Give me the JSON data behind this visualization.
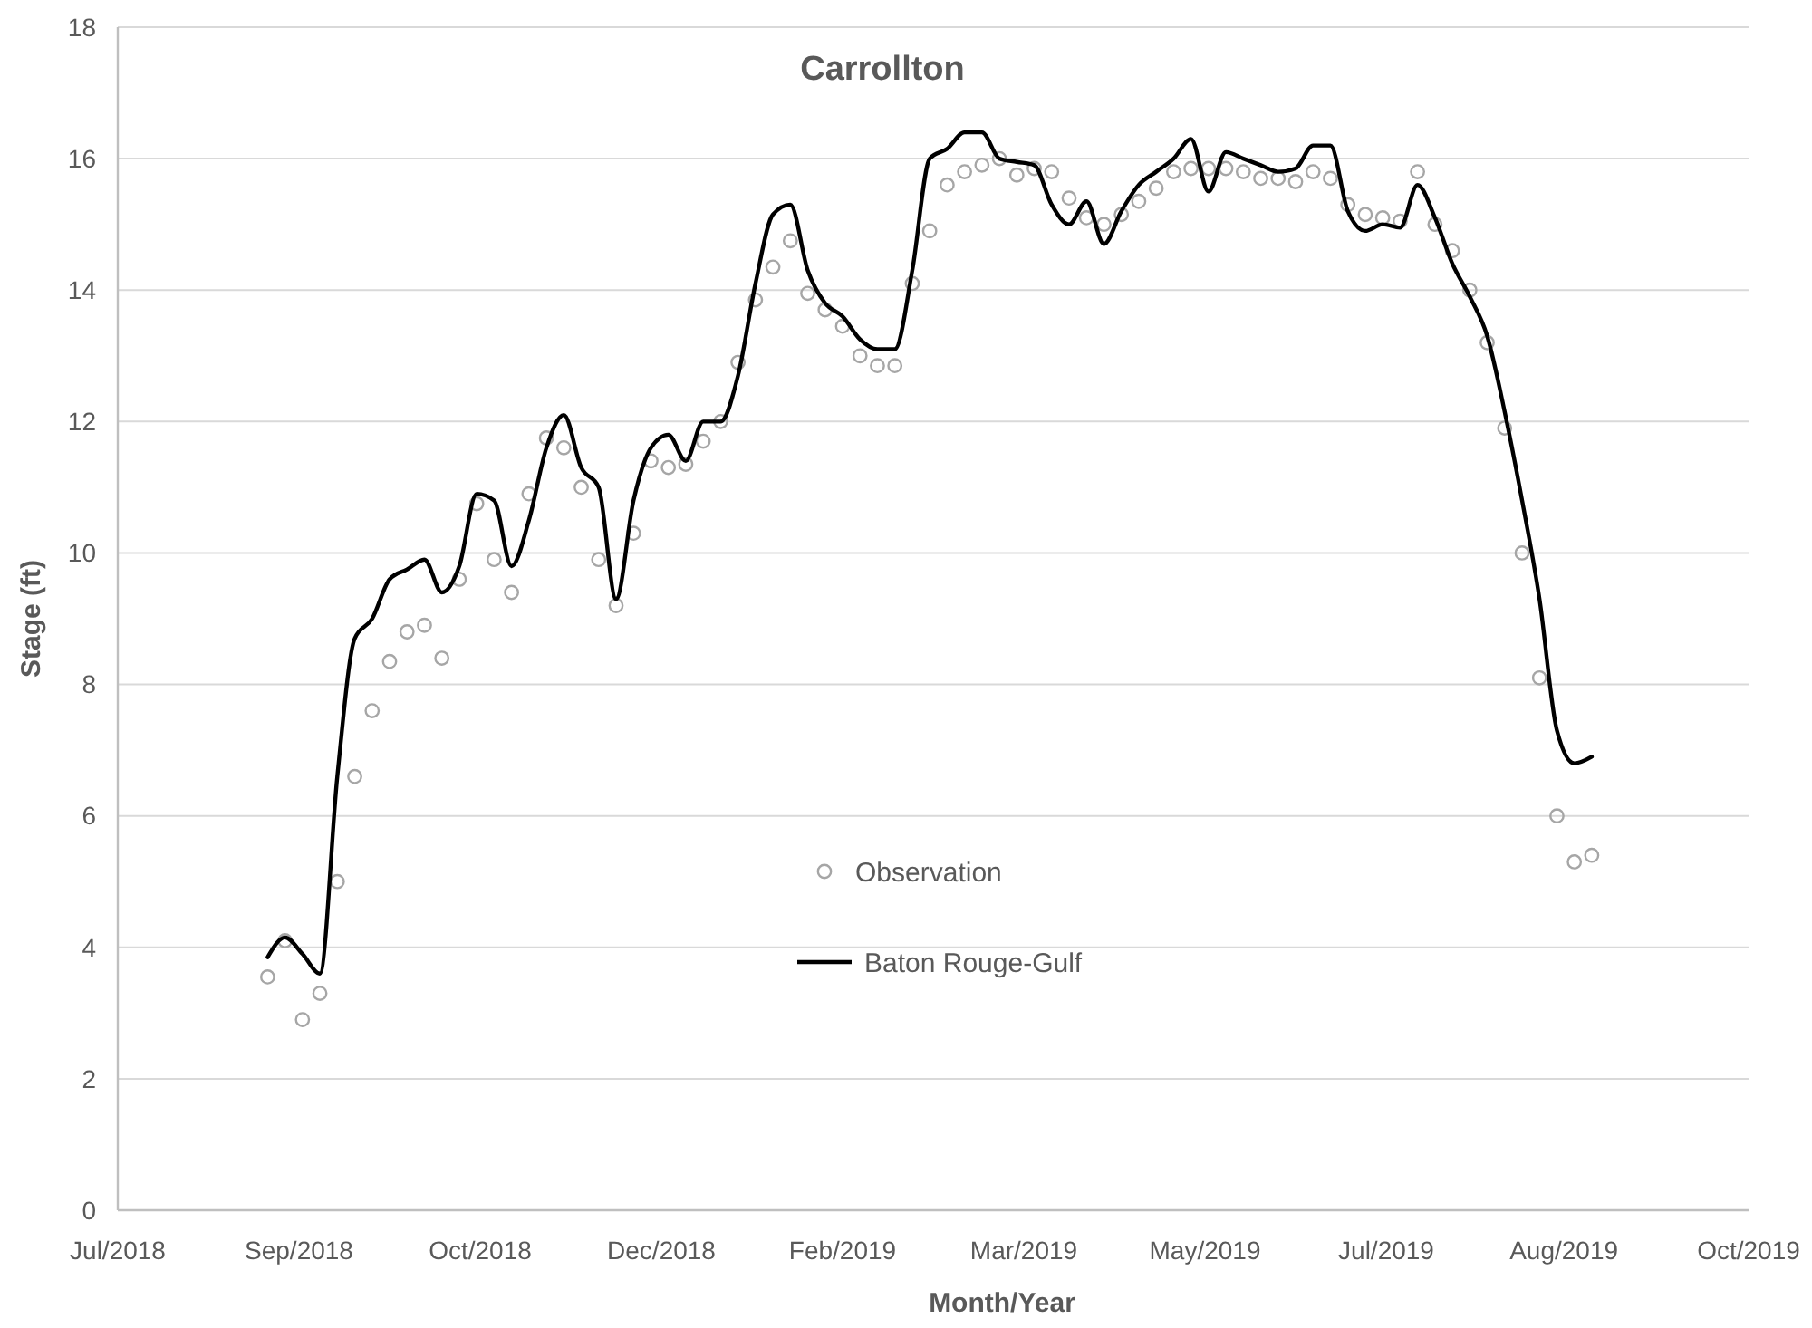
{
  "chart_data": {
    "type": "line",
    "title": "Carrollton",
    "xlabel": "Month/Year",
    "ylabel": "Stage (ft)",
    "x": [
      "2018-08-24",
      "2018-08-29",
      "2018-09-03",
      "2018-09-08",
      "2018-09-13",
      "2018-09-18",
      "2018-09-23",
      "2018-09-28",
      "2018-10-03",
      "2018-10-08",
      "2018-10-13",
      "2018-10-18",
      "2018-10-23",
      "2018-10-28",
      "2018-11-02",
      "2018-11-07",
      "2018-11-12",
      "2018-11-17",
      "2018-11-22",
      "2018-11-27",
      "2018-12-02",
      "2018-12-07",
      "2018-12-12",
      "2018-12-17",
      "2018-12-22",
      "2018-12-27",
      "2019-01-01",
      "2019-01-06",
      "2019-01-11",
      "2019-01-16",
      "2019-01-21",
      "2019-01-26",
      "2019-01-31",
      "2019-02-05",
      "2019-02-10",
      "2019-02-15",
      "2019-02-20",
      "2019-02-25",
      "2019-03-02",
      "2019-03-07",
      "2019-03-12",
      "2019-03-17",
      "2019-03-22",
      "2019-03-27",
      "2019-04-01",
      "2019-04-06",
      "2019-04-11",
      "2019-04-16",
      "2019-04-21",
      "2019-04-26",
      "2019-05-01",
      "2019-05-06",
      "2019-05-11",
      "2019-05-16",
      "2019-05-21",
      "2019-05-26",
      "2019-05-31",
      "2019-06-05",
      "2019-06-10",
      "2019-06-15",
      "2019-06-20",
      "2019-06-25",
      "2019-06-30",
      "2019-07-05",
      "2019-07-10",
      "2019-07-15",
      "2019-07-20",
      "2019-07-25",
      "2019-07-30",
      "2019-08-04",
      "2019-08-09",
      "2019-08-14",
      "2019-08-19",
      "2019-08-24",
      "2019-08-29",
      "2019-09-03",
      "2019-09-08"
    ],
    "series": [
      {
        "name": "Observation",
        "type": "scatter",
        "marker": "circle",
        "color": "#a6a6a6",
        "values": [
          3.55,
          4.1,
          2.9,
          3.3,
          5.0,
          6.6,
          7.6,
          8.35,
          8.8,
          8.9,
          8.4,
          9.6,
          10.75,
          9.9,
          9.4,
          10.9,
          11.75,
          11.6,
          11.0,
          9.9,
          9.2,
          10.3,
          11.4,
          11.3,
          11.35,
          11.7,
          12.0,
          12.9,
          13.85,
          14.35,
          14.75,
          13.95,
          13.7,
          13.45,
          13.0,
          12.85,
          12.85,
          14.1,
          14.9,
          15.6,
          15.8,
          15.9,
          16.0,
          15.75,
          15.85,
          15.8,
          15.4,
          15.1,
          15.0,
          15.15,
          15.35,
          15.55,
          15.8,
          15.85,
          15.85,
          15.85,
          15.8,
          15.7,
          15.7,
          15.65,
          15.8,
          15.7,
          15.3,
          15.15,
          15.1,
          15.05,
          15.8,
          15.0,
          14.6,
          14.0,
          13.2,
          11.9,
          10.0,
          8.1,
          6.0,
          5.3,
          5.4
        ]
      },
      {
        "name": "Baton Rouge-Gulf",
        "color": "#000000",
        "values": [
          3.85,
          4.15,
          3.9,
          3.6,
          6.6,
          8.7,
          9.0,
          9.6,
          9.75,
          9.9,
          9.4,
          9.8,
          10.9,
          10.8,
          9.8,
          10.5,
          11.6,
          12.1,
          11.3,
          11.0,
          9.3,
          10.8,
          11.6,
          11.8,
          11.4,
          12.0,
          12.0,
          12.7,
          14.1,
          15.15,
          15.3,
          14.3,
          13.8,
          13.6,
          13.25,
          13.1,
          13.1,
          14.3,
          16.0,
          16.15,
          16.4,
          16.4,
          16.0,
          15.95,
          15.9,
          15.3,
          15.0,
          15.35,
          14.7,
          15.2,
          15.6,
          15.8,
          16.0,
          16.3,
          15.5,
          16.1,
          16.0,
          15.9,
          15.8,
          15.85,
          16.2,
          16.2,
          15.2,
          14.9,
          15.0,
          14.95,
          15.6,
          15.1,
          14.4,
          13.9,
          13.3,
          12.15,
          10.8,
          9.3,
          7.3,
          6.8,
          6.9
        ]
      }
    ],
    "xlim": [
      "2018-07-12",
      "2019-10-23"
    ],
    "xticks": [
      {
        "value": "2018-07-12",
        "label": "Jul/2018"
      },
      {
        "value": "2018-09-02",
        "label": "Sep/2018"
      },
      {
        "value": "2018-10-24",
        "label": "Oct/2018"
      },
      {
        "value": "2018-12-15",
        "label": "Dec/2018"
      },
      {
        "value": "2019-02-05",
        "label": "Feb/2019"
      },
      {
        "value": "2019-03-29",
        "label": "Mar/2019"
      },
      {
        "value": "2019-05-20",
        "label": "May/2019"
      },
      {
        "value": "2019-07-11",
        "label": "Jul/2019"
      },
      {
        "value": "2019-08-31",
        "label": "Aug/2019"
      },
      {
        "value": "2019-10-23",
        "label": "Oct/2019"
      }
    ],
    "ylim": [
      0,
      18
    ],
    "yticks": [
      0,
      2,
      4,
      6,
      8,
      10,
      12,
      14,
      16,
      18
    ],
    "grid": "y",
    "legend": "bottom"
  }
}
